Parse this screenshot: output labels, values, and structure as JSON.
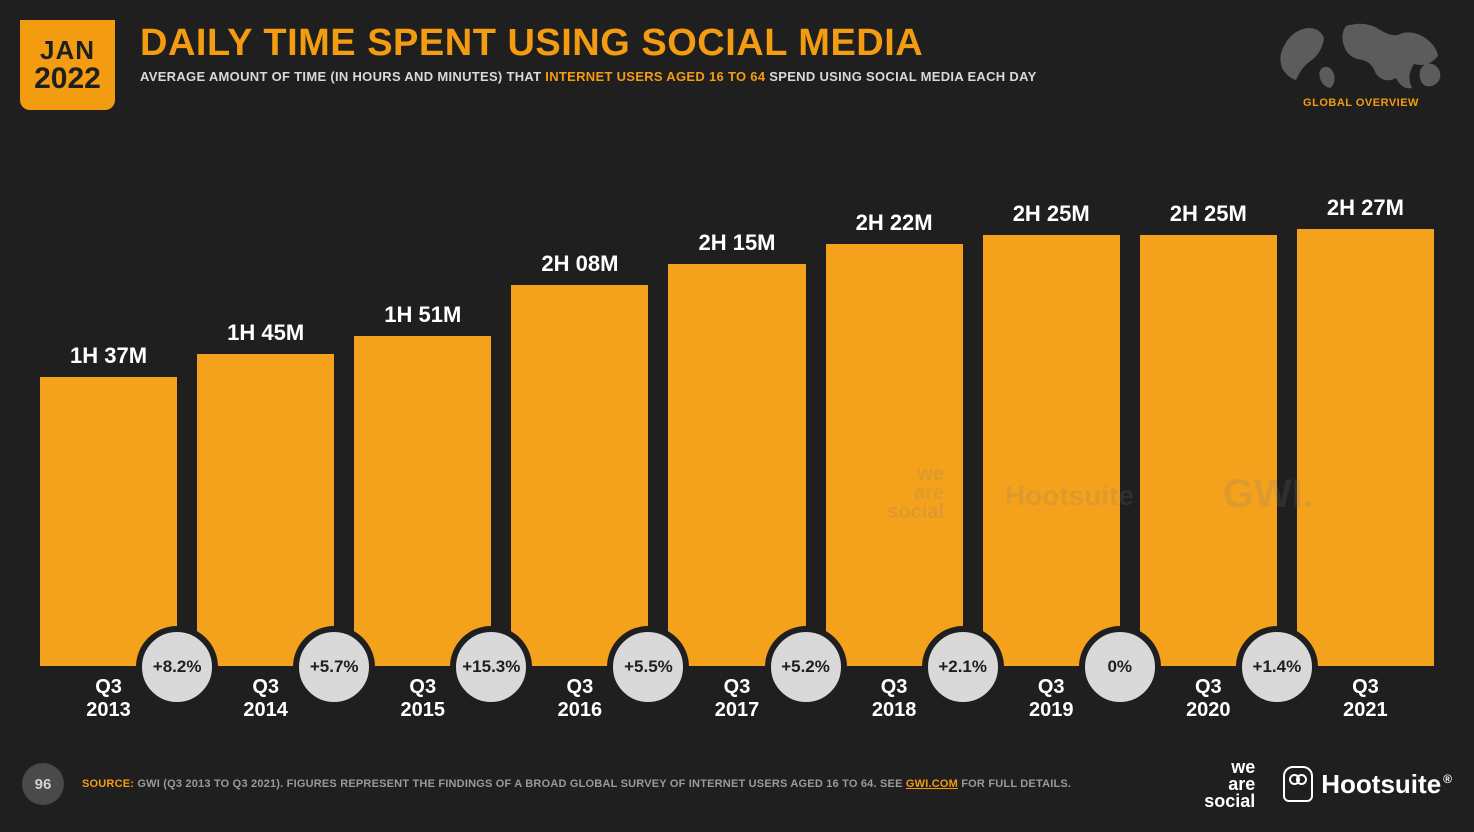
{
  "badge": {
    "month": "JAN",
    "year": "2022"
  },
  "title": "DAILY TIME SPENT USING SOCIAL MEDIA",
  "subtitle_pre": "AVERAGE AMOUNT OF TIME (IN HOURS AND MINUTES) THAT ",
  "subtitle_hl": "INTERNET USERS AGED 16 TO 64",
  "subtitle_post": " SPEND USING SOCIAL MEDIA EACH DAY",
  "globe_label": "GLOBAL OVERVIEW",
  "chart": {
    "type": "bar",
    "bar_color": "#f4a21c",
    "value_color": "#ffffff",
    "value_fontsize": 22,
    "xlabel_color": "#ffffff",
    "xlabel_fontsize": 20,
    "pct_badge_bg": "#d9d9d9",
    "pct_badge_border": "#1f1f1f",
    "pct_badge_text": "#1f1f1f",
    "background": "#1f1f1f",
    "max_minutes": 160,
    "bars": [
      {
        "label_top": "Q3",
        "label_bot": "2013",
        "value_label": "1H 37M",
        "minutes": 97
      },
      {
        "label_top": "Q3",
        "label_bot": "2014",
        "value_label": "1H 45M",
        "minutes": 105
      },
      {
        "label_top": "Q3",
        "label_bot": "2015",
        "value_label": "1H 51M",
        "minutes": 111
      },
      {
        "label_top": "Q3",
        "label_bot": "2016",
        "value_label": "2H 08M",
        "minutes": 128
      },
      {
        "label_top": "Q3",
        "label_bot": "2017",
        "value_label": "2H 15M",
        "minutes": 135
      },
      {
        "label_top": "Q3",
        "label_bot": "2018",
        "value_label": "2H 22M",
        "minutes": 142
      },
      {
        "label_top": "Q3",
        "label_bot": "2019",
        "value_label": "2H 25M",
        "minutes": 145
      },
      {
        "label_top": "Q3",
        "label_bot": "2020",
        "value_label": "2H 25M",
        "minutes": 145
      },
      {
        "label_top": "Q3",
        "label_bot": "2021",
        "value_label": "2H 27M",
        "minutes": 147
      }
    ],
    "pct_changes": [
      "+8.2%",
      "+5.7%",
      "+15.3%",
      "+5.5%",
      "+5.2%",
      "+2.1%",
      "0%",
      "+1.4%"
    ]
  },
  "watermarks": {
    "social": "we\nare\nsocial",
    "hoot": "Hootsuite",
    "gwi": "GWI."
  },
  "footer": {
    "page": "96",
    "source_label": "SOURCE:",
    "source_text_a": " GWI (Q3 2013 TO Q3 2021). FIGURES REPRESENT THE FINDINGS OF A BROAD GLOBAL SURVEY OF INTERNET USERS AGED 16 TO 64. SEE ",
    "source_link": "GWI.COM",
    "source_text_b": " FOR FULL DETAILS.",
    "social_logo_l1": "we",
    "social_logo_l2": "are",
    "social_logo_l3": "social",
    "hootsuite": "Hootsuite"
  }
}
